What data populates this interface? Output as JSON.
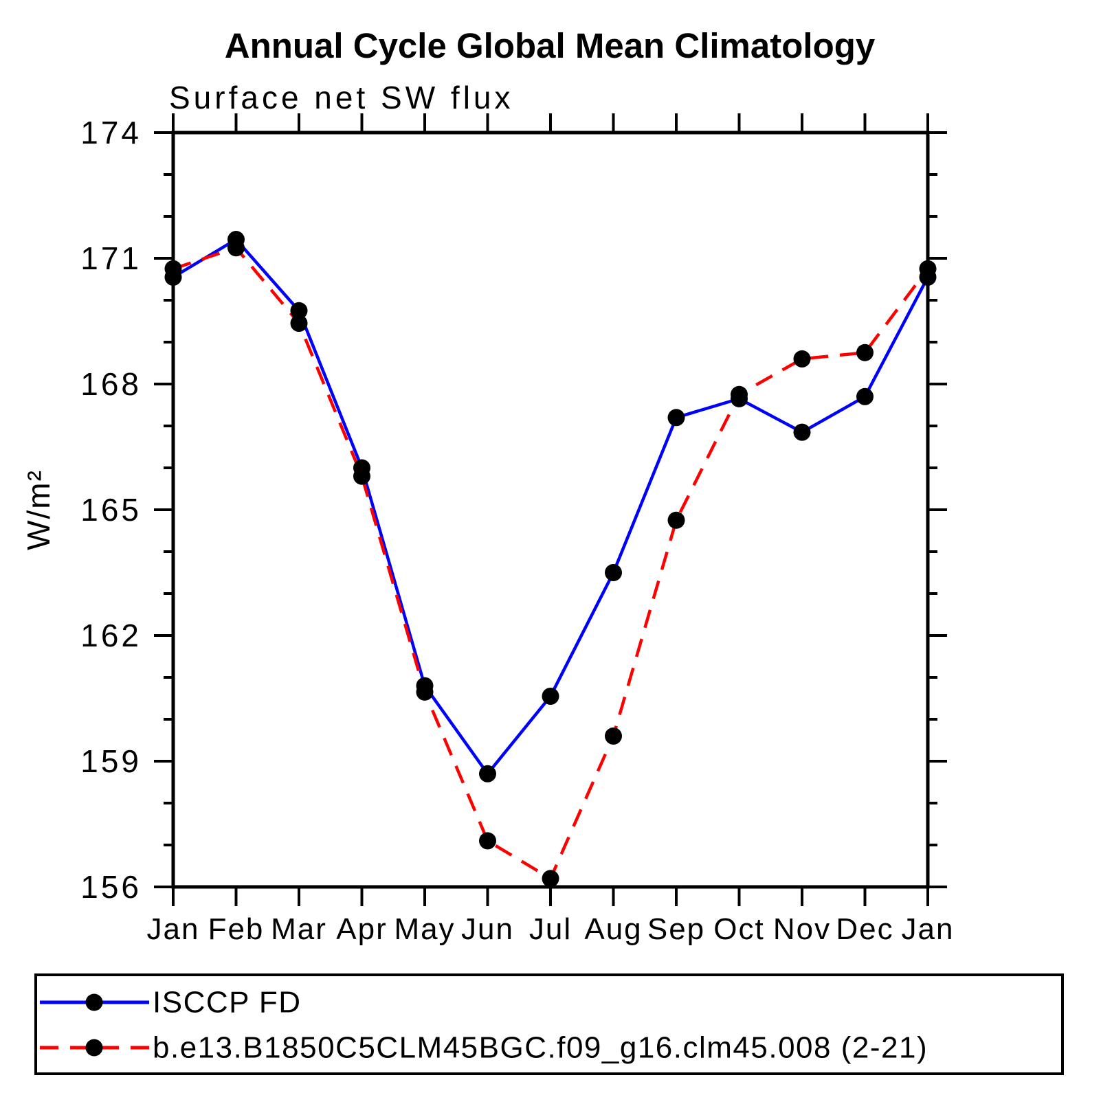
{
  "title": "Annual Cycle Global Mean Climatology",
  "subtitle": "Surface net SW flux",
  "chart_data": {
    "type": "line",
    "title": "Annual Cycle Global Mean Climatology",
    "subtitle": "Surface net SW flux",
    "xlabel": "",
    "ylabel": "W/m²",
    "categories": [
      "Jan",
      "Feb",
      "Mar",
      "Apr",
      "May",
      "Jun",
      "Jul",
      "Aug",
      "Sep",
      "Oct",
      "Nov",
      "Dec",
      "Jan"
    ],
    "series": [
      {
        "name": "ISCCP FD",
        "color": "#0000ff",
        "style": "solid",
        "marker": "filled-circle",
        "marker_color": "#000000",
        "values": [
          170.55,
          171.45,
          169.75,
          166.0,
          160.8,
          158.7,
          160.55,
          163.5,
          167.2,
          167.65,
          166.85,
          167.7,
          170.55
        ]
      },
      {
        "name": "b.e13.B1850C5CLM45BGC.f09_g16.clm45.008 (2-21)",
        "color": "#ff0000",
        "style": "dashed",
        "marker": "filled-circle",
        "marker_color": "#000000",
        "values": [
          170.75,
          171.25,
          169.45,
          165.8,
          160.65,
          157.1,
          156.2,
          159.6,
          164.75,
          167.75,
          168.6,
          168.75,
          170.75
        ]
      }
    ],
    "ylim": [
      156,
      174
    ],
    "y_major_ticks": [
      156,
      159,
      162,
      165,
      168,
      171,
      174
    ],
    "y_minor_tick_step": 1,
    "grid": false,
    "background": "#ffffff",
    "legend_position": "bottom-left-box"
  }
}
